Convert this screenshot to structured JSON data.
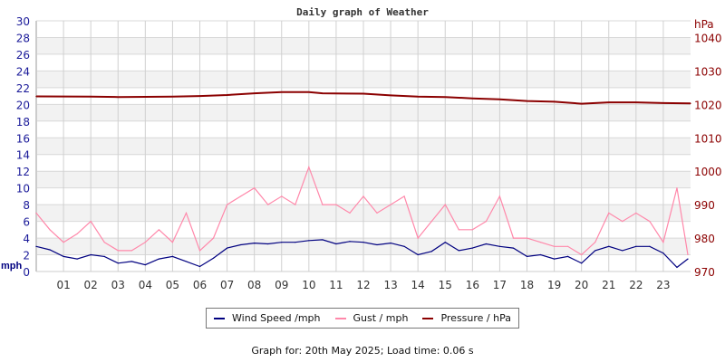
{
  "chart_data": {
    "type": "line",
    "title": "Daily graph of Weather",
    "left_axis": {
      "unit_label": "mph",
      "range": [
        0,
        30
      ],
      "ticks": [
        0,
        2,
        4,
        6,
        8,
        10,
        12,
        14,
        16,
        18,
        20,
        22,
        24,
        26,
        28,
        30
      ],
      "color": "#1a1a99"
    },
    "right_axis": {
      "unit_label": "hPa",
      "range": [
        970,
        1045
      ],
      "ticks": [
        970,
        980,
        990,
        1000,
        1010,
        1020,
        1030,
        1040
      ],
      "color": "#8b0000"
    },
    "x_axis": {
      "range": [
        0,
        24
      ],
      "tick_labels": [
        "01",
        "02",
        "03",
        "04",
        "05",
        "06",
        "07",
        "08",
        "09",
        "10",
        "11",
        "12",
        "13",
        "14",
        "15",
        "16",
        "17",
        "18",
        "19",
        "20",
        "21",
        "22",
        "23"
      ]
    },
    "grid": true,
    "series": [
      {
        "name": "Wind Speed /mph",
        "axis": "left",
        "color": "#000080",
        "x": [
          0,
          0.5,
          1,
          1.5,
          2,
          2.5,
          3,
          3.5,
          4,
          4.5,
          5,
          5.5,
          6,
          6.5,
          7,
          7.5,
          8,
          8.5,
          9,
          9.5,
          10,
          10.5,
          11,
          11.5,
          12,
          12.5,
          13,
          13.5,
          14,
          14.5,
          15,
          15.5,
          16,
          16.5,
          17,
          17.5,
          18,
          18.5,
          19,
          19.5,
          20,
          20.5,
          21,
          21.5,
          22,
          22.5,
          23,
          23.5,
          23.9
        ],
        "y": [
          3.0,
          2.6,
          1.8,
          1.5,
          2.0,
          1.8,
          1.0,
          1.2,
          0.8,
          1.5,
          1.8,
          1.2,
          0.6,
          1.6,
          2.8,
          3.2,
          3.4,
          3.3,
          3.5,
          3.5,
          3.7,
          3.8,
          3.3,
          3.6,
          3.5,
          3.2,
          3.4,
          3.0,
          2.0,
          2.4,
          3.5,
          2.5,
          2.8,
          3.3,
          3.0,
          2.8,
          1.8,
          2.0,
          1.5,
          1.8,
          1.0,
          2.5,
          3.0,
          2.5,
          3.0,
          3.0,
          2.2,
          0.5,
          1.5
        ]
      },
      {
        "name": "Gust / mph",
        "axis": "left",
        "color": "#ff88aa",
        "x": [
          0,
          0.5,
          1,
          1.5,
          2,
          2.5,
          3,
          3.5,
          4,
          4.5,
          5,
          5.5,
          6,
          6.5,
          7,
          7.5,
          8,
          8.5,
          9,
          9.5,
          10,
          10.5,
          11,
          11.5,
          12,
          12.5,
          13,
          13.5,
          14,
          14.5,
          15,
          15.5,
          16,
          16.5,
          17,
          17.5,
          18,
          18.5,
          19,
          19.5,
          20,
          20.5,
          21,
          21.5,
          22,
          22.5,
          23,
          23.5,
          23.9
        ],
        "y": [
          7,
          5,
          3.5,
          4.5,
          6,
          3.5,
          2.5,
          2.5,
          3.5,
          5,
          3.5,
          7,
          2.5,
          4,
          8,
          9,
          10,
          8,
          9,
          8,
          12.5,
          8,
          8,
          7,
          9,
          7,
          8,
          9,
          4,
          6,
          8,
          5,
          5,
          6,
          9,
          4,
          4,
          3.5,
          3,
          3,
          2,
          3.5,
          7,
          6,
          7,
          6,
          3.5,
          10,
          2
        ]
      },
      {
        "name": "Pressure / hPa",
        "axis": "right",
        "color": "#8b0000",
        "x": [
          0,
          2,
          3,
          5,
          6,
          7,
          8,
          9,
          10,
          10.5,
          12,
          13,
          14,
          15,
          16,
          17,
          18,
          19,
          20,
          21,
          22,
          23,
          24
        ],
        "y": [
          1022.4,
          1022.3,
          1022.2,
          1022.3,
          1022.5,
          1022.8,
          1023.3,
          1023.7,
          1023.7,
          1023.3,
          1023.2,
          1022.7,
          1022.3,
          1022.2,
          1021.8,
          1021.5,
          1021.0,
          1020.8,
          1020.2,
          1020.6,
          1020.6,
          1020.4,
          1020.3
        ]
      }
    ],
    "legend_position": "bottom"
  },
  "footer": "Graph for: 20th May 2025; Load time: 0.06 s"
}
